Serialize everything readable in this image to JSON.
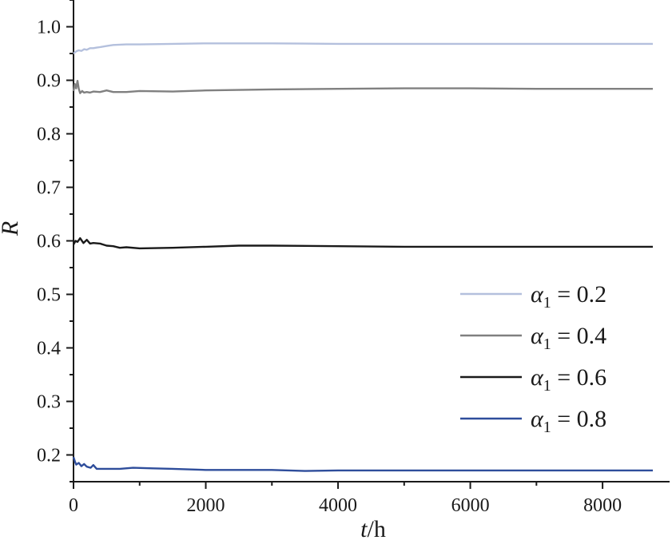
{
  "chart_data": {
    "type": "line",
    "xlabel_var": "t",
    "xlabel_unit": "/h",
    "ylabel": "R",
    "xlim": [
      0,
      8760
    ],
    "ylim": [
      0.15,
      1.05
    ],
    "xticks": [
      0,
      2000,
      4000,
      6000,
      8000
    ],
    "yticks": [
      0.2,
      0.3,
      0.4,
      0.5,
      0.6,
      0.7,
      0.8,
      0.9,
      1.0
    ],
    "ytick_labels": [
      "0.2",
      "0.3",
      "0.4",
      "0.5",
      "0.6",
      "0.7",
      "0.8",
      "0.9",
      "1.0"
    ],
    "xtick_labels": [
      "0",
      "2000",
      "4000",
      "6000",
      "8000"
    ],
    "legend_position": "lower-right",
    "series": [
      {
        "name_symbol": "α",
        "name_sub": "1",
        "name_value": " = 0.2",
        "color": "#b4c0dd",
        "x": [
          0,
          40,
          80,
          120,
          160,
          200,
          250,
          300,
          350,
          400,
          500,
          600,
          800,
          1000,
          1500,
          2000,
          3000,
          4000,
          5000,
          6000,
          7000,
          8000,
          8760
        ],
        "y": [
          0.95,
          0.954,
          0.956,
          0.955,
          0.958,
          0.957,
          0.96,
          0.96,
          0.961,
          0.962,
          0.964,
          0.966,
          0.967,
          0.967,
          0.968,
          0.969,
          0.969,
          0.968,
          0.968,
          0.968,
          0.968,
          0.968,
          0.968
        ]
      },
      {
        "name_symbol": "α",
        "name_sub": "1",
        "name_value": " = 0.4",
        "color": "#808080",
        "x": [
          0,
          20,
          40,
          60,
          80,
          100,
          130,
          160,
          200,
          250,
          300,
          400,
          500,
          600,
          800,
          1000,
          1500,
          2000,
          3000,
          4000,
          5000,
          6000,
          7000,
          8000,
          8760
        ],
        "y": [
          0.88,
          0.893,
          0.885,
          0.899,
          0.884,
          0.876,
          0.88,
          0.877,
          0.878,
          0.877,
          0.879,
          0.878,
          0.881,
          0.878,
          0.878,
          0.88,
          0.879,
          0.881,
          0.883,
          0.884,
          0.885,
          0.885,
          0.884,
          0.884,
          0.884
        ]
      },
      {
        "name_symbol": "α",
        "name_sub": "1",
        "name_value": " = 0.6",
        "color": "#1a1a1a",
        "x": [
          0,
          30,
          60,
          100,
          150,
          200,
          250,
          300,
          400,
          500,
          600,
          700,
          800,
          1000,
          1500,
          2000,
          2500,
          3000,
          4000,
          5000,
          6000,
          7000,
          8000,
          8760
        ],
        "y": [
          0.593,
          0.6,
          0.598,
          0.605,
          0.596,
          0.602,
          0.595,
          0.596,
          0.595,
          0.591,
          0.59,
          0.587,
          0.588,
          0.586,
          0.587,
          0.589,
          0.591,
          0.591,
          0.59,
          0.589,
          0.589,
          0.589,
          0.589,
          0.589
        ]
      },
      {
        "name_symbol": "α",
        "name_sub": "1",
        "name_value": " = 0.8",
        "color": "#2e4d9b",
        "x": [
          0,
          20,
          40,
          80,
          120,
          160,
          200,
          260,
          300,
          350,
          400,
          500,
          700,
          900,
          1200,
          1500,
          2000,
          2500,
          3000,
          3500,
          4000,
          5000,
          6000,
          7000,
          8000,
          8760
        ],
        "y": [
          0.196,
          0.188,
          0.182,
          0.185,
          0.179,
          0.183,
          0.178,
          0.176,
          0.181,
          0.174,
          0.174,
          0.174,
          0.174,
          0.176,
          0.175,
          0.174,
          0.172,
          0.172,
          0.172,
          0.17,
          0.171,
          0.171,
          0.171,
          0.171,
          0.171,
          0.171
        ]
      }
    ]
  }
}
